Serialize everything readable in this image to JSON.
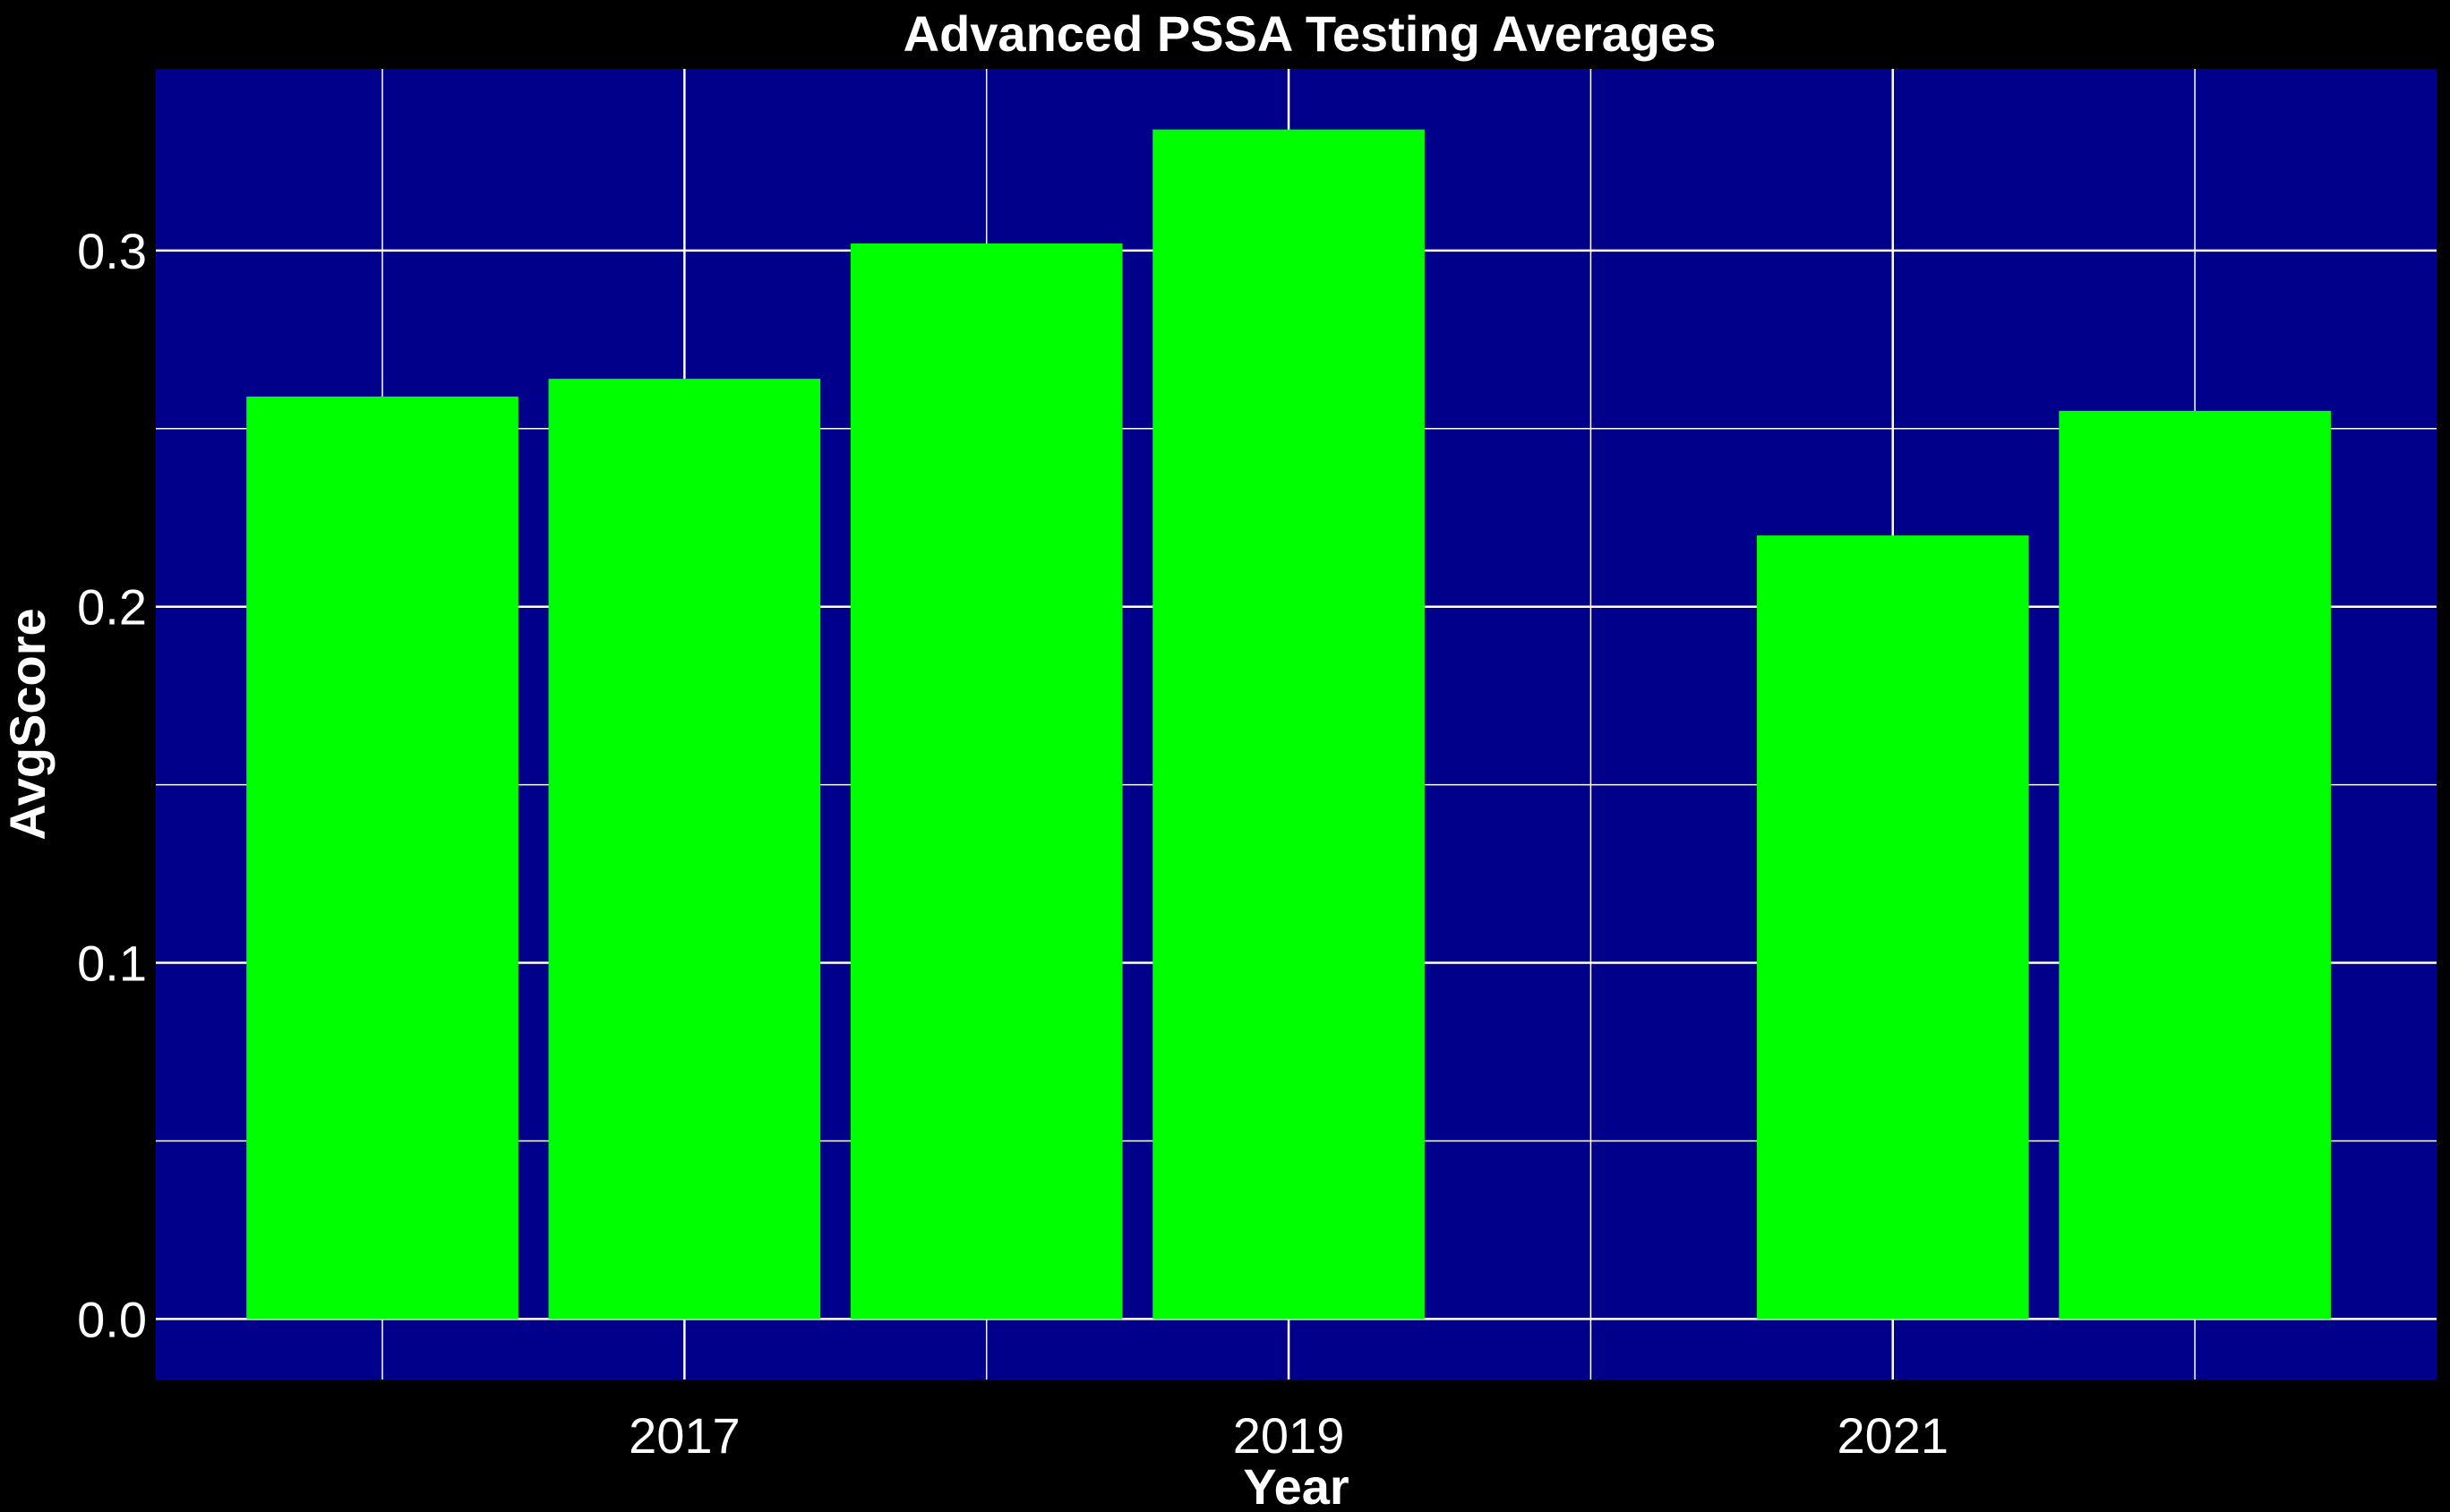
{
  "chart_data": {
    "type": "bar",
    "title": "Advanced PSSA Testing Averages",
    "xlabel": "Year",
    "ylabel": "AvgScore",
    "x": [
      2016,
      2017,
      2018,
      2019,
      2021,
      2022
    ],
    "values": [
      0.259,
      0.264,
      0.302,
      0.334,
      0.22,
      0.255
    ],
    "xlim": [
      2015.25,
      2022.8
    ],
    "ylim": [
      -0.017,
      0.351
    ],
    "x_ticks": [
      2017,
      2019,
      2021
    ],
    "x_tick_labels": [
      "2017",
      "2019",
      "2021"
    ],
    "y_ticks": [
      0.0,
      0.1,
      0.2,
      0.3
    ],
    "y_tick_labels": [
      "0.0",
      "0.1",
      "0.2",
      "0.3"
    ],
    "x_grid_major": [
      2017,
      2019,
      2021
    ],
    "x_grid_minor": [
      2016,
      2018,
      2020,
      2022
    ],
    "y_grid_major": [
      0.0,
      0.1,
      0.2,
      0.3
    ],
    "y_grid_minor": [
      0.05,
      0.15,
      0.25
    ],
    "grid": true,
    "bar_width": 0.9,
    "colors": {
      "background": "#000000",
      "panel": "#00008b",
      "bar": "#00ff00",
      "grid": "#ffffff",
      "text": "#ffffff"
    }
  }
}
